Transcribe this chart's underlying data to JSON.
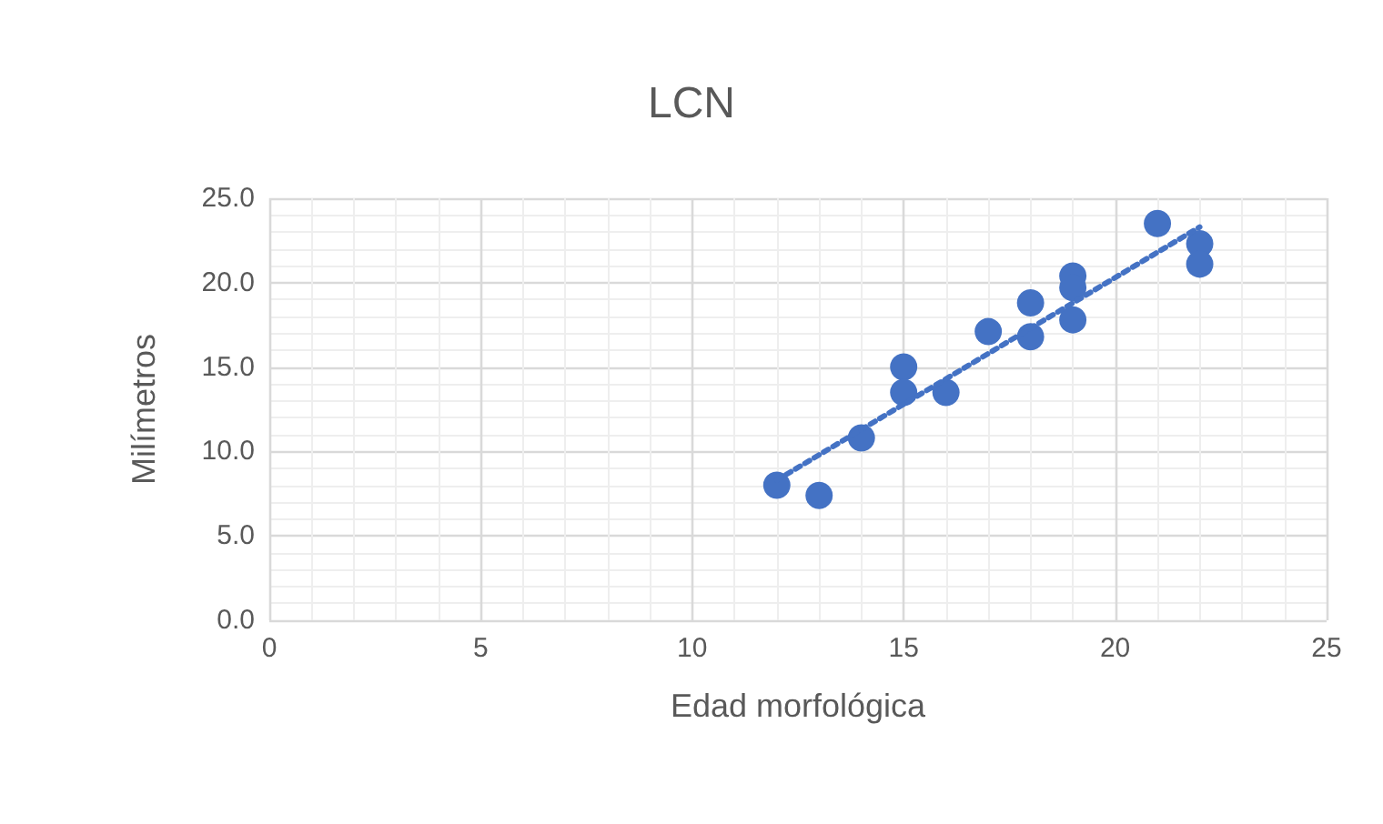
{
  "chart_data": {
    "type": "scatter",
    "title": "LCN",
    "xlabel": "Edad morfológica",
    "ylabel": "Milímetros",
    "x": [
      12,
      13,
      14,
      15,
      15,
      16,
      17,
      18,
      18,
      19,
      19,
      19,
      21,
      22,
      22
    ],
    "series": [
      {
        "color": "#4472c4",
        "marker": "circle",
        "values": [
          8.0,
          7.4,
          10.8,
          15.0,
          13.5,
          13.5,
          17.1,
          18.8,
          16.8,
          20.4,
          19.7,
          17.8,
          23.5,
          22.3,
          21.1
        ]
      },
      {
        "type": "line",
        "color": "#4472c4",
        "line_style": "dotted",
        "marker": "none",
        "x": [
          12,
          22
        ],
        "values": [
          8.3,
          23.3
        ]
      }
    ],
    "xlim": [
      0,
      25
    ],
    "xticks": [
      0,
      5,
      10,
      15,
      20,
      25
    ],
    "ylim": [
      0,
      25
    ],
    "yticks": [
      {
        "value": 0,
        "label": "0.0"
      },
      {
        "value": 5,
        "label": "5.0"
      },
      {
        "value": 10,
        "label": "10.0"
      },
      {
        "value": 15,
        "label": "15.0"
      },
      {
        "value": 20,
        "label": "20.0"
      },
      {
        "value": 25,
        "label": "25.0"
      }
    ],
    "grid": true
  }
}
